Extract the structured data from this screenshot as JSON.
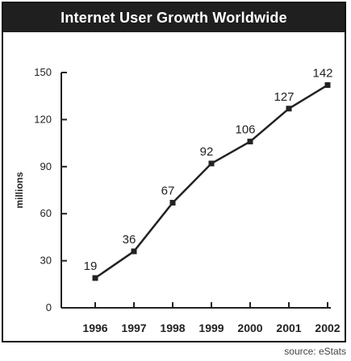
{
  "chart_data": {
    "type": "line",
    "title": "Internet User Growth Worldwide",
    "xlabel": "",
    "ylabel": "millions",
    "categories": [
      "1996",
      "1997",
      "1998",
      "1999",
      "2000",
      "2001",
      "2002"
    ],
    "series": [
      {
        "values": [
          19,
          36,
          67,
          92,
          106,
          127,
          142
        ]
      }
    ],
    "data_labels": [
      "19",
      "36",
      "67",
      "92",
      "106",
      "127",
      "142"
    ],
    "yticks": [
      0,
      30,
      60,
      90,
      120,
      150
    ],
    "ylim": [
      0,
      150
    ],
    "grid": false,
    "legend": "none",
    "line_color": "#222222"
  },
  "source_note": "source: eStats"
}
